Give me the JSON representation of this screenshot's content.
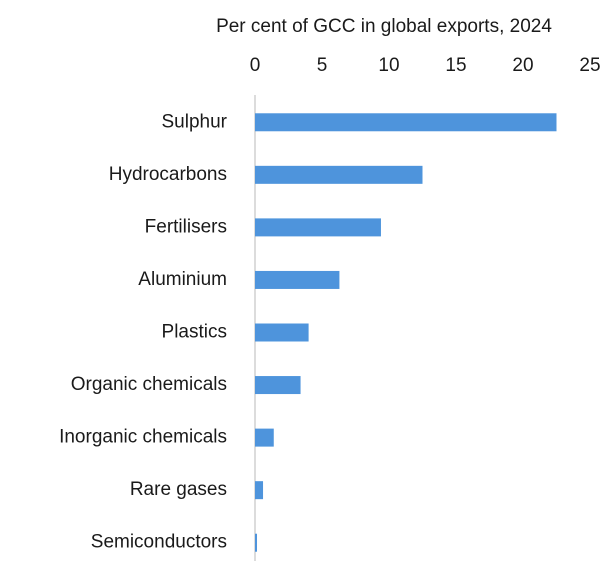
{
  "chart_data": {
    "type": "hbar",
    "title": "Per cent of GCC in global exports, 2024",
    "categories": [
      "Sulphur",
      "Hydrocarbons",
      "Fertilisers",
      "Aluminium",
      "Plastics",
      "Organic chemicals",
      "Inorganic chemicals",
      "Rare gases",
      "Semiconductors"
    ],
    "values": [
      22.5,
      12.5,
      9.4,
      6.3,
      4.0,
      3.4,
      1.4,
      0.6,
      0.15
    ],
    "color": "#4e94dc",
    "xlim": [
      0,
      25
    ],
    "xticks": [
      0,
      5,
      10,
      15,
      20,
      25
    ],
    "grid": false
  }
}
